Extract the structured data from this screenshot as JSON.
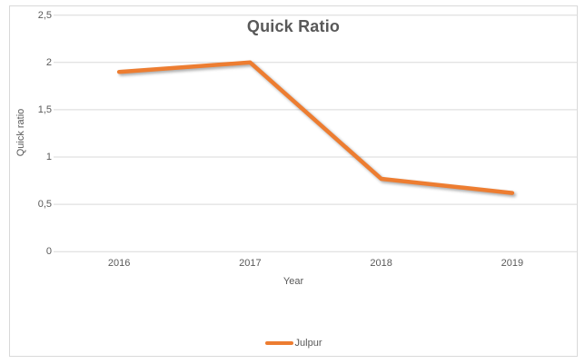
{
  "chart_data": {
    "type": "line",
    "title": "Quick Ratio",
    "xlabel": "Year",
    "ylabel": "Quick ratio",
    "categories": [
      "2016",
      "2017",
      "2018",
      "2019"
    ],
    "series": [
      {
        "name": "Julpur",
        "color": "#ED7D31",
        "values": [
          1.9,
          2.0,
          0.77,
          0.62
        ]
      }
    ],
    "ylim": [
      0,
      2.5
    ],
    "yticks": [
      {
        "value": 0,
        "label": "0"
      },
      {
        "value": 0.5,
        "label": "0,5"
      },
      {
        "value": 1,
        "label": "1"
      },
      {
        "value": 1.5,
        "label": "1,5"
      },
      {
        "value": 2,
        "label": "2"
      },
      {
        "value": 2.5,
        "label": "2,5"
      }
    ],
    "decimal_separator": ",",
    "grid": true,
    "legend_position": "bottom",
    "colors": {
      "gridline": "#D9D9D9",
      "frame_border": "#D9D9D9",
      "text": "#595959",
      "series": "#ED7D31"
    }
  }
}
